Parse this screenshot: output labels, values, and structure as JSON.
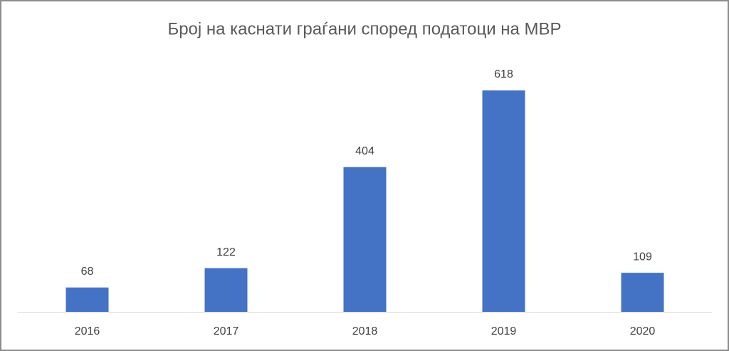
{
  "chart_data": {
    "type": "bar",
    "title": "Број на каснати граѓани според податоци на МВР",
    "categories": [
      "2016",
      "2017",
      "2018",
      "2019",
      "2020"
    ],
    "values": [
      68,
      122,
      404,
      618,
      109
    ],
    "color": "#4472c4"
  }
}
